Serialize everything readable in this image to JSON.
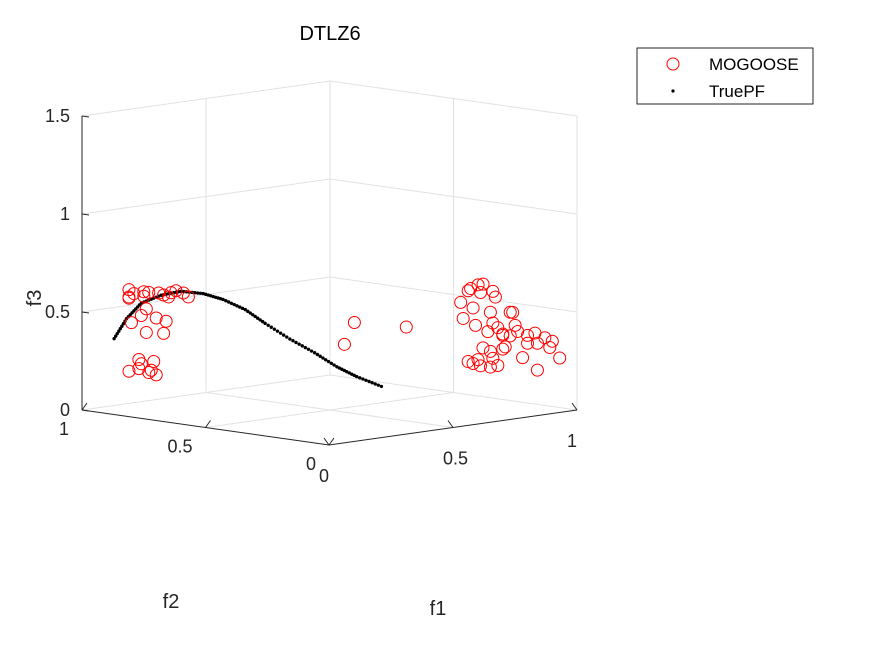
{
  "chart_data": {
    "type": "scatter",
    "title": "DTLZ6",
    "xlabel": "f1",
    "ylabel": "f2",
    "zlabel": "f3",
    "xlim": [
      0,
      1
    ],
    "ylim": [
      0,
      1
    ],
    "zlim": [
      0,
      1.5
    ],
    "xticks": [
      "0",
      "0.5",
      "1"
    ],
    "yticks": [
      "0",
      "0.5",
      "1"
    ],
    "zticks": [
      "0",
      "0.5",
      "1",
      "1.5"
    ],
    "grid": true,
    "legend_position": "top-right",
    "series": [
      {
        "name": "MOGOOSE",
        "marker": "open-circle",
        "color": "#ff0000",
        "points": [
          [
            0.05,
            0.86,
            0.63
          ],
          [
            0.06,
            0.85,
            0.61
          ],
          [
            0.04,
            0.85,
            0.59
          ],
          [
            0.07,
            0.82,
            0.6
          ],
          [
            0.05,
            0.8,
            0.63
          ],
          [
            0.08,
            0.81,
            0.62
          ],
          [
            0.03,
            0.84,
            0.6
          ],
          [
            0.09,
            0.78,
            0.62
          ],
          [
            0.1,
            0.77,
            0.61
          ],
          [
            0.12,
            0.76,
            0.62
          ],
          [
            0.13,
            0.75,
            0.63
          ],
          [
            0.11,
            0.76,
            0.6
          ],
          [
            0.14,
            0.73,
            0.62
          ],
          [
            0.15,
            0.72,
            0.6
          ],
          [
            0.07,
            0.83,
            0.5
          ],
          [
            0.09,
            0.83,
            0.53
          ],
          [
            0.06,
            0.86,
            0.46
          ],
          [
            0.09,
            0.83,
            0.41
          ],
          [
            0.12,
            0.82,
            0.48
          ],
          [
            0.15,
            0.81,
            0.46
          ],
          [
            0.14,
            0.81,
            0.4
          ],
          [
            0.06,
            0.87,
            0.21
          ],
          [
            0.08,
            0.84,
            0.25
          ],
          [
            0.09,
            0.86,
            0.22
          ],
          [
            0.12,
            0.84,
            0.21
          ],
          [
            0.11,
            0.84,
            0.2
          ],
          [
            0.12,
            0.82,
            0.19
          ],
          [
            0.11,
            0.82,
            0.26
          ],
          [
            0.08,
            0.85,
            0.27
          ],
          [
            0.86,
            0.3,
            0.58
          ],
          [
            0.84,
            0.27,
            0.6
          ],
          [
            0.86,
            0.25,
            0.58
          ],
          [
            0.88,
            0.28,
            0.61
          ],
          [
            0.9,
            0.28,
            0.61
          ],
          [
            0.9,
            0.24,
            0.58
          ],
          [
            0.88,
            0.21,
            0.56
          ],
          [
            0.79,
            0.26,
            0.54
          ],
          [
            0.82,
            0.24,
            0.51
          ],
          [
            0.85,
            0.2,
            0.49
          ],
          [
            0.89,
            0.16,
            0.49
          ],
          [
            0.92,
            0.18,
            0.48
          ],
          [
            0.88,
            0.13,
            0.43
          ],
          [
            0.84,
            0.16,
            0.42
          ],
          [
            0.86,
            0.13,
            0.38
          ],
          [
            0.84,
            0.18,
            0.44
          ],
          [
            0.8,
            0.21,
            0.43
          ],
          [
            0.82,
            0.18,
            0.4
          ],
          [
            0.88,
            0.18,
            0.37
          ],
          [
            0.9,
            0.2,
            0.37
          ],
          [
            0.91,
            0.15,
            0.39
          ],
          [
            0.93,
            0.13,
            0.37
          ],
          [
            0.95,
            0.12,
            0.38
          ],
          [
            0.96,
            0.09,
            0.36
          ],
          [
            0.98,
            0.08,
            0.34
          ],
          [
            0.97,
            0.08,
            0.31
          ],
          [
            0.95,
            0.11,
            0.33
          ],
          [
            0.93,
            0.13,
            0.33
          ],
          [
            0.88,
            0.18,
            0.3
          ],
          [
            0.85,
            0.2,
            0.29
          ],
          [
            0.83,
            0.21,
            0.31
          ],
          [
            0.86,
            0.15,
            0.32
          ],
          [
            0.82,
            0.22,
            0.25
          ],
          [
            0.84,
            0.18,
            0.26
          ],
          [
            0.81,
            0.23,
            0.23
          ],
          [
            0.8,
            0.24,
            0.24
          ],
          [
            0.82,
            0.21,
            0.22
          ],
          [
            0.85,
            0.2,
            0.21
          ],
          [
            0.86,
            0.18,
            0.22
          ],
          [
            0.91,
            0.13,
            0.26
          ],
          [
            0.79,
            0.25,
            0.46
          ],
          [
            0.93,
            0.09,
            0.2
          ],
          [
            0.98,
            0.05,
            0.26
          ],
          [
            0.72,
            0.41,
            0.4
          ],
          [
            0.6,
            0.54,
            0.31
          ],
          [
            0.68,
            0.58,
            0.4
          ]
        ]
      },
      {
        "name": "TruePF",
        "marker": "dot",
        "color": "#000000",
        "points": [
          [
            0.02,
            0.89,
            0.38
          ],
          [
            0.05,
            0.87,
            0.48
          ],
          [
            0.08,
            0.84,
            0.56
          ],
          [
            0.12,
            0.8,
            0.6
          ],
          [
            0.16,
            0.76,
            0.62
          ],
          [
            0.2,
            0.71,
            0.61
          ],
          [
            0.24,
            0.67,
            0.58
          ],
          [
            0.28,
            0.62,
            0.53
          ],
          [
            0.32,
            0.58,
            0.46
          ],
          [
            0.37,
            0.53,
            0.38
          ],
          [
            0.42,
            0.48,
            0.31
          ],
          [
            0.46,
            0.43,
            0.24
          ],
          [
            0.5,
            0.39,
            0.19
          ],
          [
            0.55,
            0.34,
            0.14
          ]
        ]
      }
    ]
  }
}
